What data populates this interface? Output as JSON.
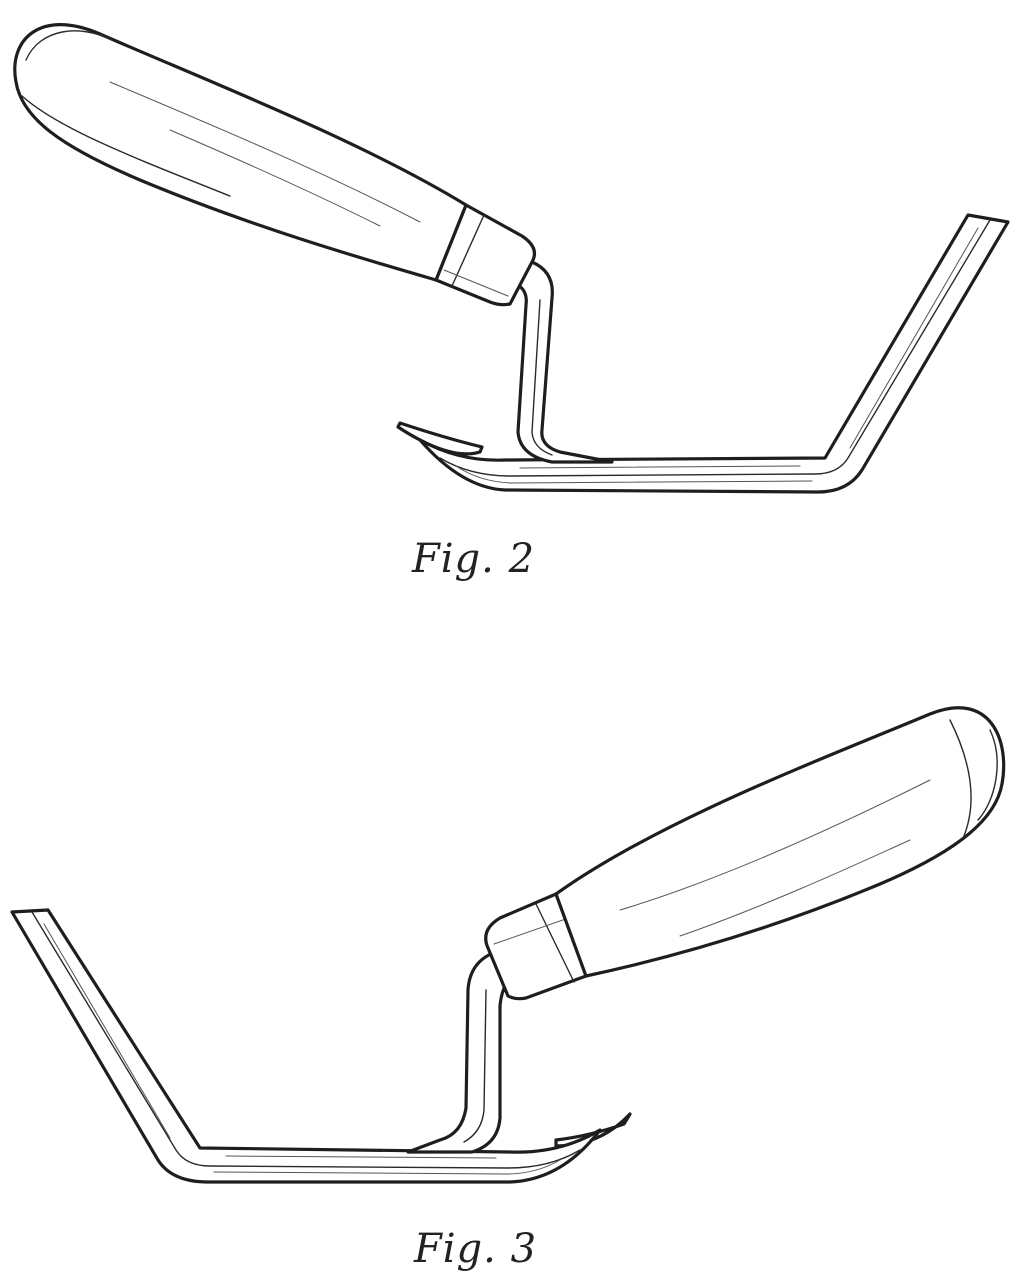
{
  "figures": [
    {
      "id": "fig2",
      "caption": "Fig. 2"
    },
    {
      "id": "fig3",
      "caption": "Fig. 3"
    }
  ]
}
